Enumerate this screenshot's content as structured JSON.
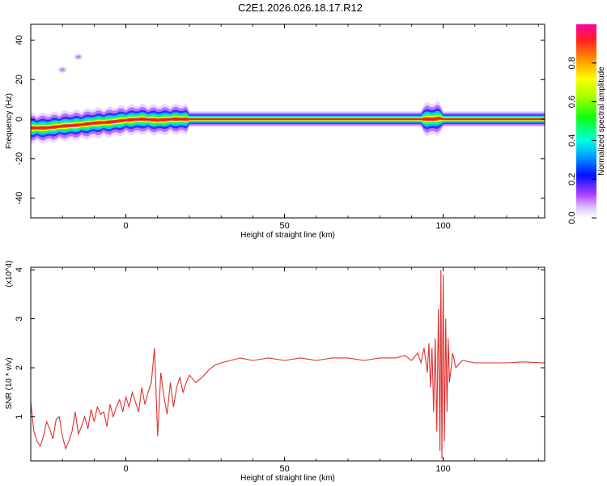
{
  "title": "C2E1.2026.026.18.17.R12",
  "chart_data": [
    {
      "type": "heatmap",
      "xlabel": "Height of straight line (km)",
      "ylabel": "Frequency (Hz)",
      "xlim": [
        -30,
        132
      ],
      "ylim": [
        -50,
        48
      ],
      "xticks": [
        0,
        50,
        100
      ],
      "yticks": [
        -40,
        -20,
        0,
        20,
        40
      ],
      "colorbar": {
        "label": "Normalized spectral amplitude",
        "range": [
          0,
          1
        ],
        "ticks": [
          0.0,
          0.2,
          0.4,
          0.6,
          0.8
        ]
      },
      "ridge": {
        "x": [
          -30,
          -25,
          -20,
          -15,
          -10,
          -5,
          0,
          5,
          10,
          15,
          20,
          30,
          50,
          70,
          90,
          95,
          97,
          99,
          100,
          110,
          120,
          132
        ],
        "freq": [
          -4.5,
          -4.5,
          -3.5,
          -3.0,
          -2.0,
          -1.5,
          -0.5,
          0.0,
          -0.5,
          0.0,
          0.0,
          0.0,
          0.0,
          0.0,
          0.0,
          0.0,
          0.0,
          0.5,
          0.0,
          0.0,
          0.0,
          0.0
        ]
      },
      "blips": [
        {
          "x": -20,
          "freq": 25
        },
        {
          "x": -15,
          "freq": 31.5
        }
      ]
    },
    {
      "type": "line",
      "xlabel": "Height of straight line (km)",
      "ylabel": "SNR (10 * v/v)",
      "yscale_label": "(x10^4)",
      "xlim": [
        -30,
        132
      ],
      "ylim": [
        0.1,
        4.05
      ],
      "xticks": [
        0,
        50,
        100
      ],
      "yticks": [
        1,
        2,
        3,
        4
      ],
      "series": [
        {
          "color": "#e03030",
          "x": [
            -30,
            -29,
            -28,
            -27,
            -26,
            -25,
            -24,
            -23,
            -22,
            -21,
            -20,
            -19,
            -18,
            -17,
            -16,
            -15,
            -14,
            -13,
            -12,
            -11,
            -10,
            -9,
            -8,
            -7,
            -6,
            -5,
            -4,
            -3,
            -2,
            -1,
            0,
            1,
            2,
            3,
            4,
            5,
            6,
            7,
            8,
            9,
            10,
            11,
            12,
            13,
            14,
            15,
            16,
            17,
            18,
            19,
            20,
            22,
            24,
            26,
            28,
            30,
            33,
            36,
            40,
            45,
            50,
            55,
            60,
            65,
            70,
            75,
            80,
            85,
            88,
            90,
            92,
            93,
            94,
            95,
            95.5,
            96,
            96.5,
            97,
            97.5,
            98,
            98.5,
            99,
            99.3,
            99.6,
            100,
            100.4,
            100.8,
            101.2,
            101.6,
            102,
            103,
            104,
            106,
            110,
            115,
            120,
            125,
            132
          ],
          "values": [
            1.3,
            0.7,
            0.5,
            0.4,
            0.6,
            0.9,
            0.75,
            0.55,
            0.95,
            1.0,
            0.6,
            0.35,
            0.5,
            0.7,
            1.1,
            0.65,
            0.8,
            1.0,
            0.75,
            1.15,
            0.9,
            1.2,
            1.05,
            1.1,
            0.8,
            1.25,
            1.0,
            1.2,
            1.35,
            1.1,
            1.4,
            1.2,
            1.5,
            1.3,
            1.1,
            1.6,
            1.25,
            1.5,
            1.7,
            2.4,
            0.6,
            1.9,
            1.4,
            1.05,
            1.7,
            1.2,
            1.6,
            1.8,
            1.5,
            1.7,
            1.85,
            1.7,
            1.8,
            1.95,
            2.05,
            2.1,
            2.15,
            2.2,
            2.15,
            2.2,
            2.15,
            2.2,
            2.15,
            2.2,
            2.2,
            2.15,
            2.2,
            2.2,
            2.25,
            2.15,
            2.3,
            2.1,
            2.4,
            1.9,
            2.5,
            1.6,
            2.4,
            1.1,
            2.6,
            0.7,
            3.2,
            0.3,
            4.0,
            0.15,
            3.9,
            0.5,
            3.0,
            1.1,
            2.6,
            1.7,
            2.3,
            2.0,
            2.15,
            2.1,
            2.1,
            2.1,
            2.12,
            2.1
          ]
        }
      ]
    }
  ]
}
